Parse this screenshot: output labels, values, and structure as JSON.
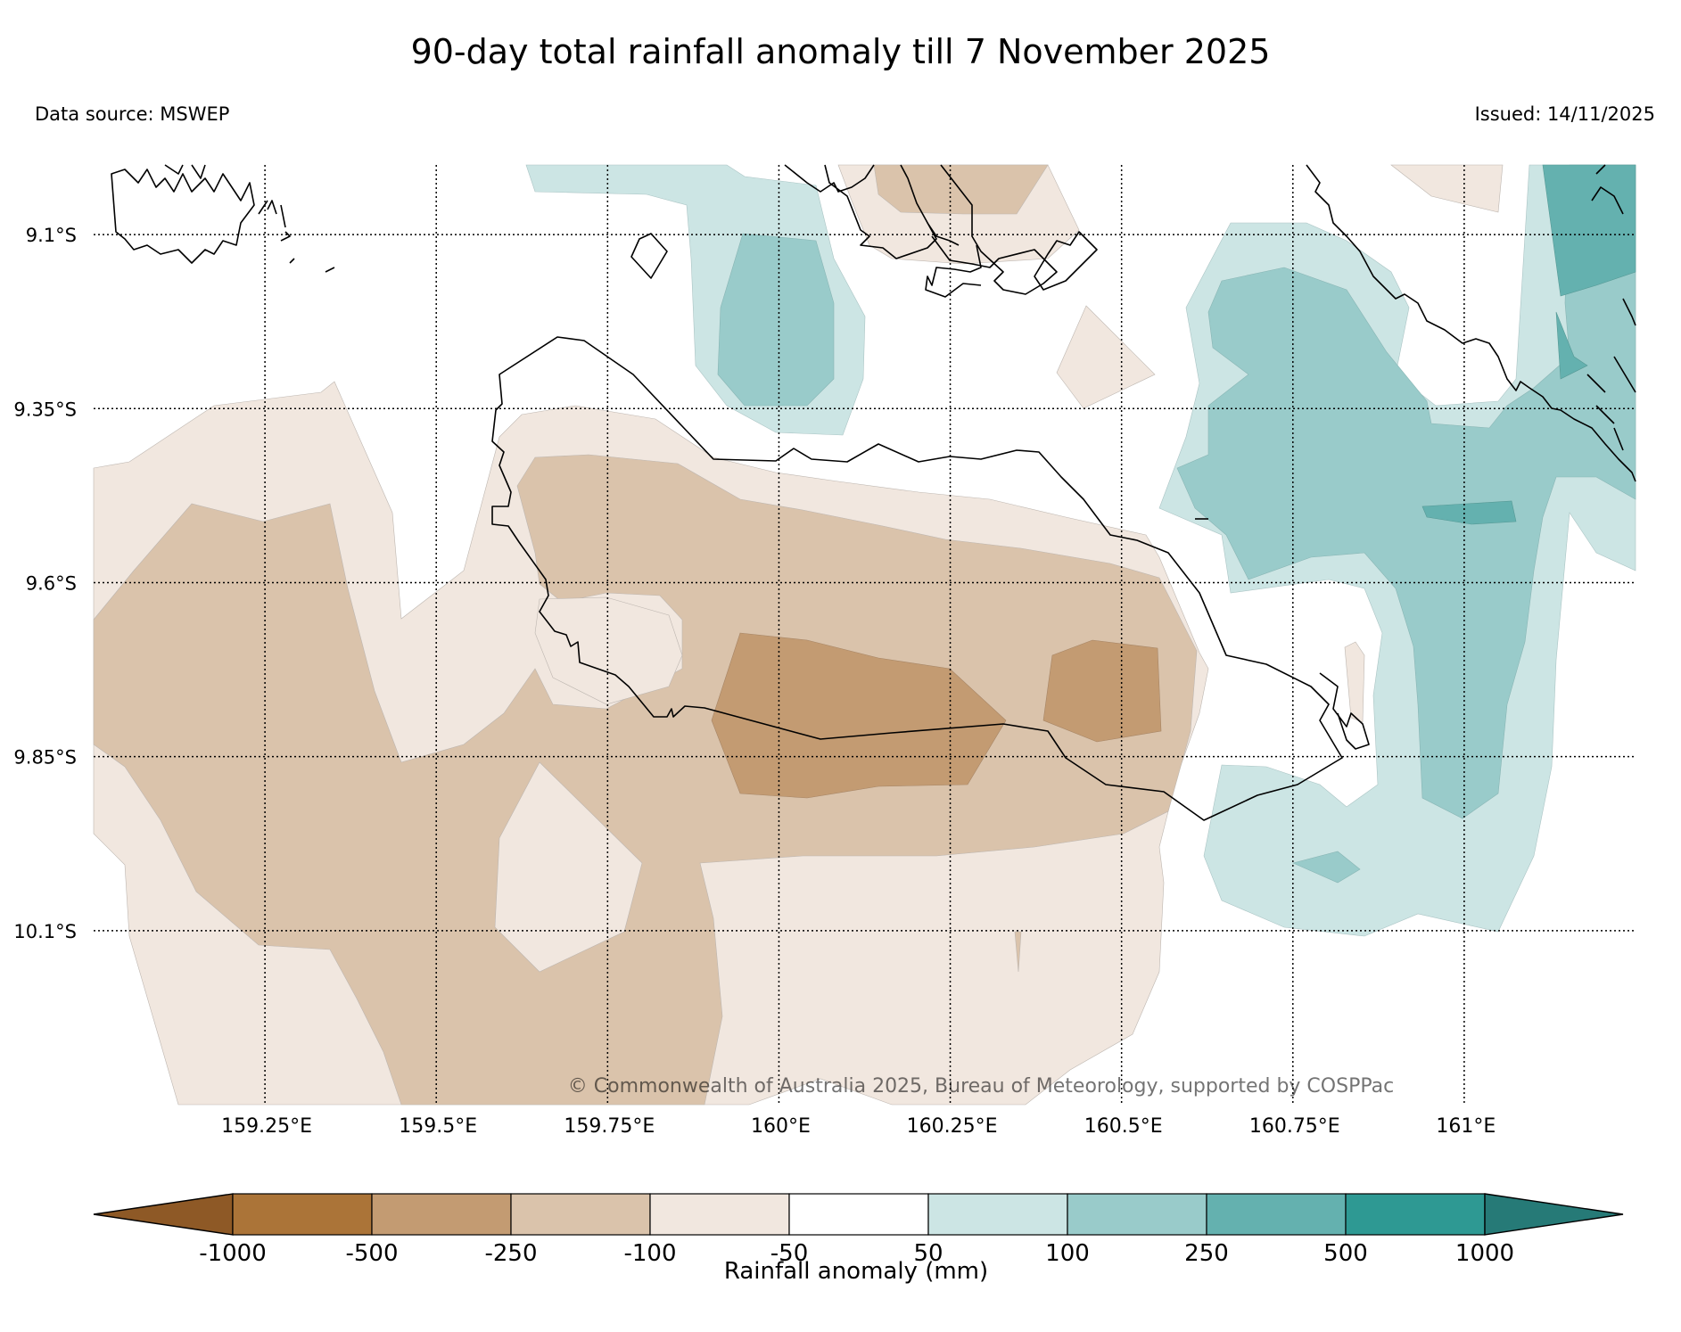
{
  "title": "90-day total rainfall anomaly till 7 November 2025",
  "data_source": "Data source: MSWEP",
  "issued": "Issued: 14/11/2025",
  "copyright": "© Commonwealth of Australia 2025, Bureau of Meteorology, supported by COSPPac",
  "map": {
    "lon_range": [
      159.0,
      161.25
    ],
    "lat_range": [
      -9.0,
      -10.35
    ],
    "lat_ticks": [
      {
        "value": -9.1,
        "label": "9.1°S"
      },
      {
        "value": -9.35,
        "label": "9.35°S"
      },
      {
        "value": -9.6,
        "label": "9.6°S"
      },
      {
        "value": -9.85,
        "label": "9.85°S"
      },
      {
        "value": -10.1,
        "label": "10.1°S"
      }
    ],
    "lon_ticks": [
      {
        "value": 159.25,
        "label": "159.25°E"
      },
      {
        "value": 159.5,
        "label": "159.5°E"
      },
      {
        "value": 159.75,
        "label": "159.75°E"
      },
      {
        "value": 160.0,
        "label": "160°E"
      },
      {
        "value": 160.25,
        "label": "160.25°E"
      },
      {
        "value": 160.5,
        "label": "160.5°E"
      },
      {
        "value": 160.75,
        "label": "160.75°E"
      },
      {
        "value": 161.0,
        "label": "161°E"
      }
    ]
  },
  "colorbar": {
    "label": "Rainfall anomaly (mm)",
    "ticks": [
      "-1000",
      "-500",
      "-250",
      "-100",
      "-50",
      "50",
      "100",
      "250",
      "500",
      "1000"
    ],
    "bins": [
      {
        "from": "-1000",
        "to": "-500",
        "color": "#ab7438"
      },
      {
        "from": "-500",
        "to": "-250",
        "color": "#c39b72"
      },
      {
        "from": "-250",
        "to": "-100",
        "color": "#dac3ab"
      },
      {
        "from": "-100",
        "to": "-50",
        "color": "#f1e7df"
      },
      {
        "from": "-50",
        "to": "50",
        "color": "#ffffff"
      },
      {
        "from": "50",
        "to": "100",
        "color": "#cce5e4"
      },
      {
        "from": "100",
        "to": "250",
        "color": "#99cbca"
      },
      {
        "from": "250",
        "to": "500",
        "color": "#64b1af"
      },
      {
        "from": "500",
        "to": "1000",
        "color": "#2e9993"
      }
    ],
    "under_color": "#8e5926",
    "over_color": "#267a77"
  }
}
